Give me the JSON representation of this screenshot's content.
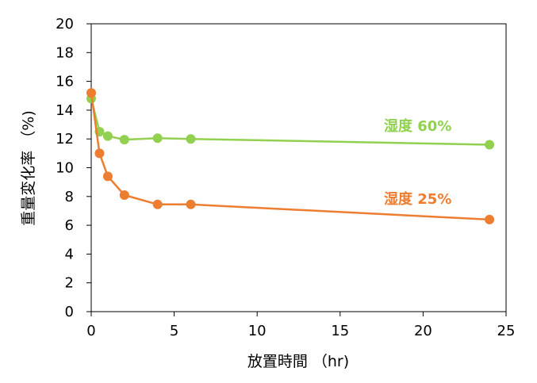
{
  "chart_data": {
    "type": "line",
    "xlabel": "放置時間 （hr)",
    "ylabel": "重量変化率 （%)",
    "xlim": [
      0,
      25
    ],
    "ylim": [
      0,
      20
    ],
    "x_ticks": [
      "0",
      "5",
      "10",
      "15",
      "20",
      "25"
    ],
    "y_ticks": [
      "0",
      "2",
      "4",
      "6",
      "8",
      "10",
      "12",
      "14",
      "16",
      "18",
      "20"
    ],
    "grid": false,
    "legend": "none (series labeled inline)",
    "series": [
      {
        "name": "湿度 60%",
        "color": "#92d050",
        "x": [
          0,
          0.5,
          1,
          2,
          4,
          6,
          24
        ],
        "y": [
          14.8,
          12.5,
          12.2,
          11.95,
          12.05,
          12.0,
          11.6
        ]
      },
      {
        "name": "湿度 25%",
        "color": "#ed7d31",
        "x": [
          0,
          0.5,
          1,
          2,
          4,
          6,
          24
        ],
        "y": [
          15.2,
          11.0,
          9.4,
          8.1,
          7.45,
          7.45,
          6.4
        ]
      }
    ]
  }
}
